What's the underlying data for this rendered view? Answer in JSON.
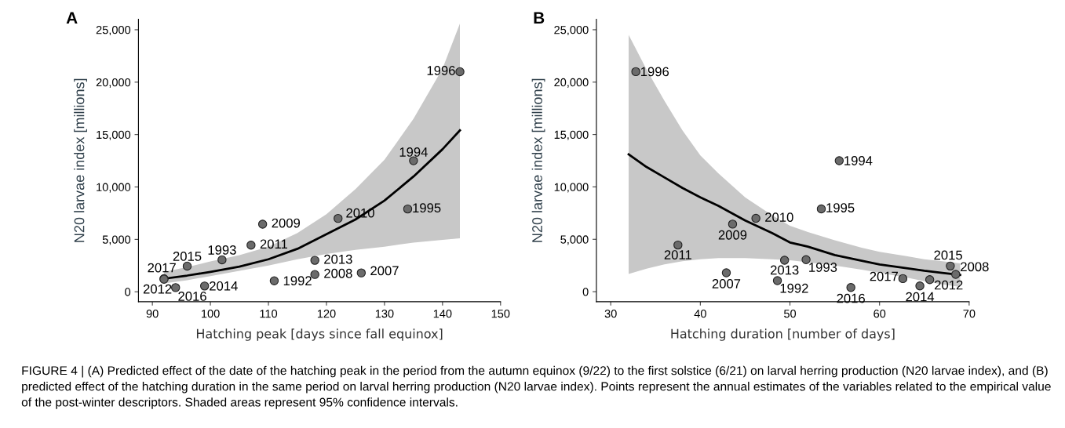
{
  "chart_data": [
    {
      "type": "scatter",
      "title": "A",
      "xlabel": "Hatching peak [days since fall equinox]",
      "ylabel": "N20 larvae index [millions]",
      "xlim": [
        87.6,
        150
      ],
      "xticks": [
        90,
        100,
        110,
        120,
        130,
        140,
        150
      ],
      "ylim": [
        -950,
        26000
      ],
      "yticks": [
        {
          "value": 0,
          "label": "0"
        },
        {
          "value": 5000,
          "label": "5,000"
        },
        {
          "value": 10000,
          "label": "10,000"
        },
        {
          "value": 15000,
          "label": "15,000"
        },
        {
          "value": 20000,
          "label": "20,000"
        },
        {
          "value": 25000,
          "label": "25,000"
        }
      ],
      "grid": false,
      "legend": false,
      "series": [
        {
          "color": "#6b6b6b",
          "marker": "circle",
          "x": [
            143,
            135,
            134,
            122,
            109,
            107,
            102,
            96,
            92,
            92,
            94,
            99,
            111,
            118,
            118,
            126
          ],
          "values": [
            21000,
            12500,
            7900,
            7000,
            6450,
            4450,
            3050,
            2450,
            1250,
            1200,
            400,
            550,
            1050,
            3000,
            1650,
            1800
          ]
        },
        {
          "type": "line",
          "color": "#000000",
          "marker": "none",
          "line_style": "solid",
          "x": [
            92,
            96,
            100,
            105,
            110,
            115,
            120,
            125,
            130,
            135,
            140,
            143
          ],
          "values": [
            1250,
            1550,
            1900,
            2400,
            3100,
            4100,
            5500,
            6900,
            8700,
            11000,
            13600,
            15400
          ],
          "lower": [
            800,
            1100,
            1500,
            2000,
            2500,
            3100,
            3600,
            4000,
            4300,
            4700,
            4950,
            5100
          ],
          "upper": [
            1900,
            2350,
            2900,
            3500,
            4300,
            5600,
            7400,
            9800,
            12600,
            16500,
            21300,
            25600
          ]
        }
      ],
      "annotations": [
        {
          "text": "1996",
          "x": 143,
          "y": 21000
        },
        {
          "text": "1994",
          "x": 135,
          "y": 12500
        },
        {
          "text": "1995",
          "x": 134,
          "y": 7900
        },
        {
          "text": "2010",
          "x": 122,
          "y": 7000
        },
        {
          "text": "2009",
          "x": 109,
          "y": 6450
        },
        {
          "text": "2011",
          "x": 107,
          "y": 4450
        },
        {
          "text": "1993",
          "x": 102,
          "y": 3050
        },
        {
          "text": "2015",
          "x": 96,
          "y": 2450
        },
        {
          "text": "2017",
          "x": 92,
          "y": 1250
        },
        {
          "text": "2012",
          "x": 92,
          "y": 1200
        },
        {
          "text": "2016",
          "x": 94,
          "y": 400
        },
        {
          "text": "2014",
          "x": 99,
          "y": 550
        },
        {
          "text": "1992",
          "x": 111,
          "y": 1050
        },
        {
          "text": "2013",
          "x": 118,
          "y": 3000
        },
        {
          "text": "2008",
          "x": 118,
          "y": 1650
        },
        {
          "text": "2007",
          "x": 126,
          "y": 1800
        },
        "FIGURE 4 | (A) Predicted effect of the date of the hatching peak in the period from the autumn equinox (9/22) to the first solstice (6/21) on larval herring production (N20 larvae index), and (B) predicted effect of the hatching duration in the same period on larval herring production (N20 larvae index). Points represent the annual estimates of the variables related to the empirical value of the post-winter descriptors. Shaded areas represent 95% confidence intervals."
      ]
    },
    {
      "type": "scatter",
      "title": "B",
      "xlabel": "Hatching duration [number of days]",
      "ylabel": "N20 larvae index [millions]",
      "xlim": [
        28.4,
        70
      ],
      "xticks": [
        30,
        40,
        50,
        60,
        70
      ],
      "ylim": [
        -960,
        26000
      ],
      "yticks": [
        {
          "value": 0,
          "label": "0"
        },
        {
          "value": 5000,
          "label": "5,000"
        },
        {
          "value": 10000,
          "label": "10,000"
        },
        {
          "value": 15000,
          "label": "15,000"
        },
        {
          "value": 20000,
          "label": "20,000"
        },
        {
          "value": 25000,
          "label": "25,000"
        }
      ],
      "grid": false,
      "legend": false,
      "series": [
        {
          "color": "#6b6b6b",
          "marker": "circle",
          "x": [
            32.8,
            37.5,
            42.9,
            43.6,
            46.2,
            48.6,
            49.4,
            51.8,
            53.5,
            55.5,
            56.8,
            62.6,
            64.5,
            65.6,
            67.9,
            68.5
          ],
          "values": [
            21000,
            4450,
            1800,
            6450,
            7000,
            1050,
            3000,
            3050,
            7900,
            12500,
            400,
            1250,
            550,
            1150,
            2450,
            1650
          ]
        },
        {
          "type": "line",
          "color": "#000000",
          "marker": "none",
          "line_style": "solid",
          "x": [
            32,
            34,
            36,
            38,
            40,
            42,
            45,
            48,
            50,
            52,
            55,
            58,
            60,
            63,
            65,
            67,
            69
          ],
          "values": [
            13100,
            11900,
            10900,
            9900,
            9000,
            8200,
            6800,
            5600,
            4700,
            4300,
            3500,
            2950,
            2600,
            2250,
            2000,
            1800,
            1600
          ],
          "lower": [
            1700,
            2200,
            2600,
            2900,
            3100,
            3200,
            3200,
            3100,
            3000,
            2800,
            2500,
            2100,
            1800,
            1350,
            1000,
            700,
            450
          ],
          "upper": [
            24500,
            21200,
            18200,
            15400,
            13000,
            11300,
            9000,
            7300,
            6300,
            5700,
            4900,
            4200,
            3800,
            3400,
            3100,
            2900,
            2700
          ]
        }
      ],
      "annotations": [
        {
          "text": "1996",
          "x": 32.8,
          "y": 21000
        },
        {
          "text": "2011",
          "x": 37.5,
          "y": 4450
        },
        {
          "text": "2007",
          "x": 42.9,
          "y": 1800
        },
        {
          "text": "2009",
          "x": 43.6,
          "y": 6450
        },
        {
          "text": "2010",
          "x": 46.2,
          "y": 7000
        },
        {
          "text": "1992",
          "x": 48.6,
          "y": 1050
        },
        {
          "text": "2013",
          "x": 49.4,
          "y": 3000
        },
        {
          "text": "1993",
          "x": 51.8,
          "y": 3050
        },
        {
          "text": "1995",
          "x": 53.5,
          "y": 7900
        },
        {
          "text": "1994",
          "x": 55.5,
          "y": 12500
        },
        {
          "text": "2016",
          "x": 56.8,
          "y": 400
        },
        {
          "text": "2017",
          "x": 62.6,
          "y": 1250
        },
        {
          "text": "2014",
          "x": 64.5,
          "y": 550
        },
        {
          "text": "2012",
          "x": 65.6,
          "y": 1150
        },
        {
          "text": "2015",
          "x": 67.9,
          "y": 2450
        },
        {
          "text": "2008",
          "x": 68.5,
          "y": 1650
        }
      ]
    }
  ]
}
